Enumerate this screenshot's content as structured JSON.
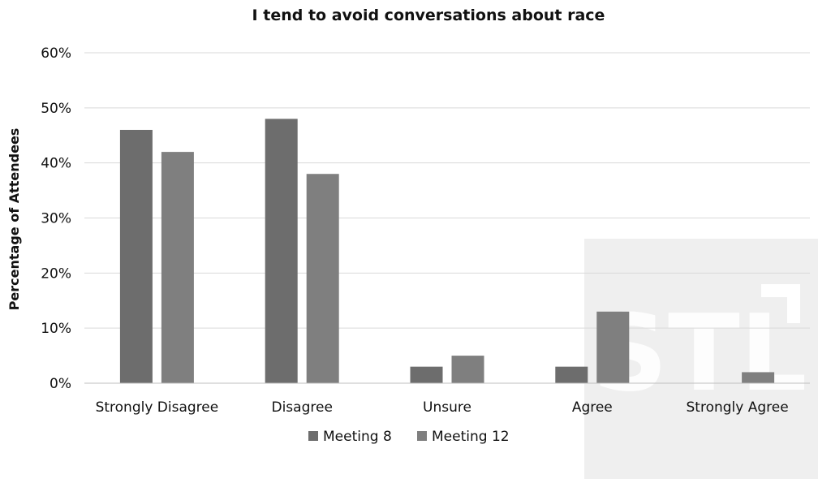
{
  "chart_data": {
    "type": "bar",
    "title": "I tend to avoid conversations about race",
    "xlabel": "",
    "ylabel": "Percentage of Attendees",
    "categories": [
      "Strongly Disagree",
      "Disagree",
      "Unsure",
      "Agree",
      "Strongly Agree"
    ],
    "series": [
      {
        "name": "Meeting 8",
        "values": [
          46,
          48,
          3,
          3,
          0
        ],
        "color": "#6d6d6d"
      },
      {
        "name": "Meeting 12",
        "values": [
          42,
          38,
          5,
          13,
          2
        ],
        "color": "#7f7f7f"
      }
    ],
    "ylim": [
      0,
      60
    ],
    "yticks": [
      0,
      10,
      20,
      30,
      40,
      50,
      60
    ],
    "yformat": "%",
    "grid": true,
    "gridColor": "#d9d9d9",
    "legend": "bottom-center"
  },
  "watermark": {
    "text": "STL",
    "background": "#efefef"
  }
}
